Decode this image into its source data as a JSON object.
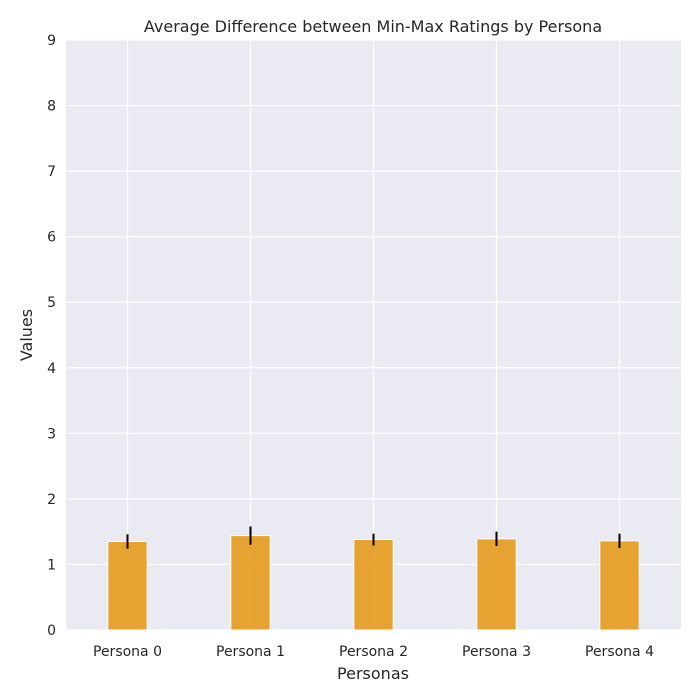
{
  "chart_data": {
    "type": "bar",
    "title": "Average Difference between Min-Max Ratings by Persona",
    "xlabel": "Personas",
    "ylabel": "Values",
    "categories": [
      "Persona 0",
      "Persona 1",
      "Persona 2",
      "Persona 3",
      "Persona 4"
    ],
    "values": [
      1.35,
      1.44,
      1.38,
      1.39,
      1.36
    ],
    "error": [
      0.11,
      0.14,
      0.09,
      0.11,
      0.11
    ],
    "ylim": [
      0,
      9
    ],
    "yticks": [
      0,
      1,
      2,
      3,
      4,
      5,
      6,
      7,
      8,
      9
    ],
    "grid": true,
    "legend": "none",
    "colors": {
      "bar": "#e69f26",
      "error_bar": "#000000",
      "plot_background": "#eaeaf2",
      "grid": "#ffffff"
    }
  }
}
